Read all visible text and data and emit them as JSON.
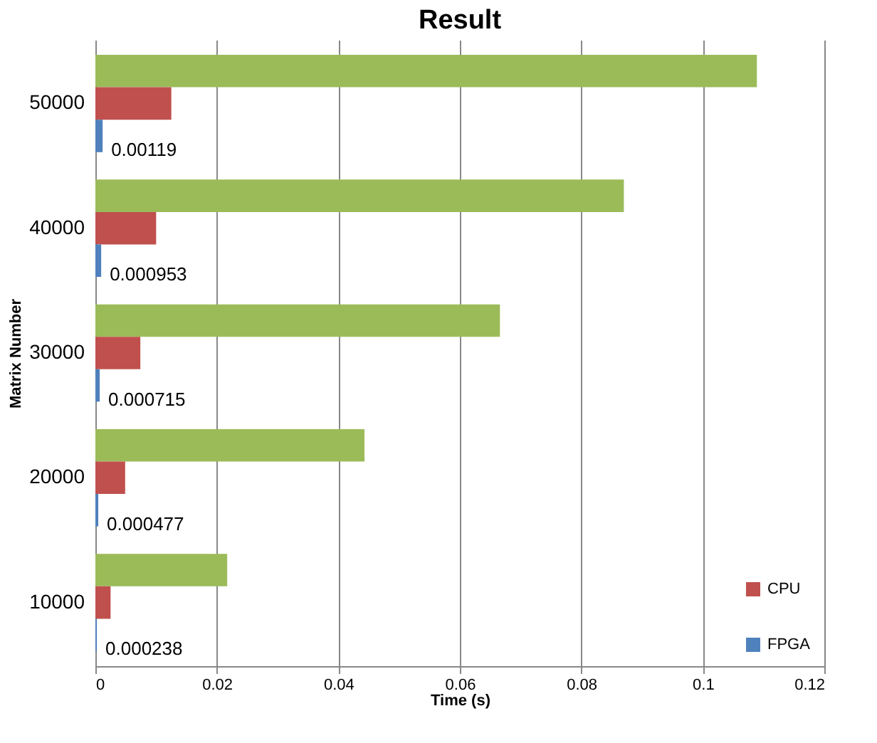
{
  "chart_data": {
    "type": "bar",
    "orientation": "horizontal",
    "title": "Result",
    "xlabel": "Time (s)",
    "ylabel": "Matrix Number",
    "categories": [
      "50000",
      "40000",
      "30000",
      "20000",
      "10000"
    ],
    "series": [
      {
        "color": "#9bbb59",
        "values": [
          0.1089,
          0.087,
          0.0666,
          0.0443,
          0.0217
        ]
      },
      {
        "name": "CPU",
        "color": "#c0504d",
        "values": [
          0.0125,
          0.01,
          0.0074,
          0.0049,
          0.0025
        ]
      },
      {
        "name": "FPGA",
        "color": "#4f81bd",
        "values": [
          0.00119,
          0.000953,
          0.000715,
          0.000477,
          0.000238
        ],
        "value_labels": [
          "0.00119",
          "0.000953",
          "0.000715",
          "0.000477",
          "0.000238"
        ]
      }
    ],
    "xlim": [
      0,
      0.12
    ],
    "xticks": [
      0,
      0.02,
      0.04,
      0.06,
      0.08,
      0.1,
      0.12
    ],
    "grid": "x",
    "legend": "bottom right"
  }
}
